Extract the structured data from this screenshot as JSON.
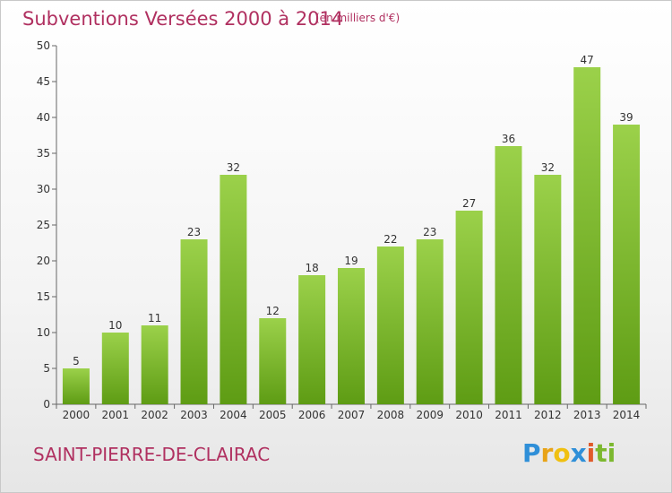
{
  "header": {
    "title": "Subventions Versées 2000 à 2014",
    "subtitle": "(en milliers d'€)"
  },
  "footer": {
    "place": "SAINT-PIERRE-DE-CLAIRAC",
    "logo": [
      "P",
      "r",
      "o",
      "x",
      "i",
      "ti"
    ]
  },
  "colors": {
    "bar_top": "#9bd14a",
    "bar_bottom": "#5e9c14",
    "title": "#b03060"
  },
  "chart_data": {
    "type": "bar",
    "title": "Subventions Versées 2000 à 2014",
    "subtitle": "(en milliers d'€)",
    "xlabel": "",
    "ylabel": "",
    "categories": [
      "2000",
      "2001",
      "2002",
      "2003",
      "2004",
      "2005",
      "2006",
      "2007",
      "2008",
      "2009",
      "2010",
      "2011",
      "2012",
      "2013",
      "2014"
    ],
    "values": [
      5,
      10,
      11,
      23,
      32,
      12,
      18,
      19,
      22,
      23,
      27,
      36,
      32,
      47,
      39
    ],
    "ylim": [
      0,
      50
    ],
    "yticks": [
      0,
      5,
      10,
      15,
      20,
      25,
      30,
      35,
      40,
      45,
      50
    ],
    "grid": false,
    "legend": "none"
  }
}
